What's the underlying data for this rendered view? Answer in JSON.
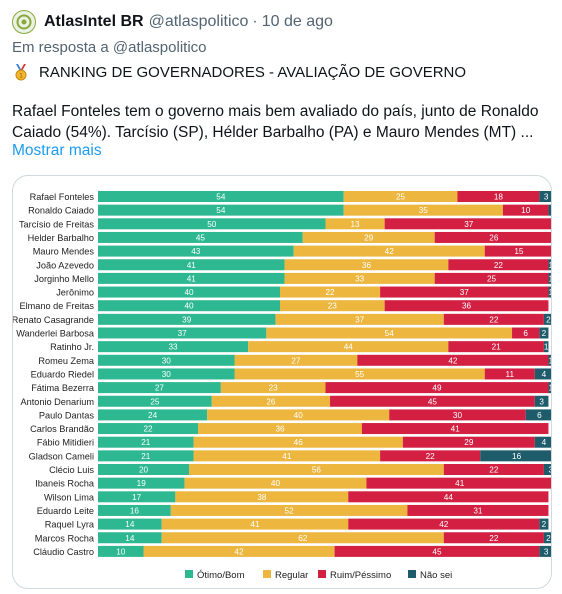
{
  "tweet": {
    "author_name": "AtlasIntel BR",
    "handle": "@atlaspolitico",
    "separator": "·",
    "time": "10 de ago",
    "reply_prefix": "Em resposta a",
    "reply_handle": "@atlaspolitico",
    "headline": "RANKING DE GOVERNADORES - AVALIAÇÃO DE GOVERNO",
    "body": "Rafael Fonteles tem o governo mais bem avaliado do país, junto de Ronaldo Caiado (54%). Tarcísio (SP), Hélder Barbalho (PA) e Mauro Mendes (MT) ...",
    "show_more": "Mostrar mais",
    "avatar_icon": "atlasintel-logo-icon",
    "medal_icon": "gold-medal-icon"
  },
  "colors": {
    "good": "#2db891",
    "regular": "#ecb63f",
    "bad": "#d21f42",
    "unknown": "#1f5c6b",
    "link": "#1d9bf0"
  },
  "chart_data": {
    "type": "bar",
    "orientation": "horizontal",
    "stacked": true,
    "categories": [
      "Rafael Fonteles",
      "Ronaldo Caiado",
      "Tarcísio de Freitas",
      "Helder Barbalho",
      "Mauro Mendes",
      "João Azevedo",
      "Jorginho Mello",
      "Jerônimo",
      "Elmano de Freitas",
      "Renato Casagrande",
      "Wanderlei Barbosa",
      "Ratinho Jr.",
      "Romeu Zema",
      "Eduardo Riedel",
      "Fátima Bezerra",
      "Antonio Denarium",
      "Paulo Dantas",
      "Carlos Brandão",
      "Fábio Mitidieri",
      "Gladson Cameli",
      "Clécio Luis",
      "Ibaneis Rocha",
      "Wilson Lima",
      "Eduardo Leite",
      "Raquel Lyra",
      "Marcos Rocha",
      "Cláudio Castro"
    ],
    "series": [
      {
        "name": "Ótimo/Bom",
        "values": [
          54,
          54,
          50,
          45,
          43,
          41,
          41,
          40,
          40,
          39,
          37,
          33,
          30,
          30,
          27,
          25,
          24,
          22,
          21,
          21,
          20,
          19,
          17,
          16,
          14,
          14,
          10
        ]
      },
      {
        "name": "Regular",
        "values": [
          25,
          35,
          13,
          29,
          42,
          36,
          33,
          22,
          23,
          37,
          54,
          44,
          27,
          55,
          23,
          26,
          40,
          36,
          46,
          41,
          56,
          40,
          38,
          52,
          41,
          62,
          42
        ]
      },
      {
        "name": "Ruim/Péssimo",
        "values": [
          18,
          10,
          37,
          26,
          15,
          22,
          25,
          37,
          36,
          22,
          6,
          21,
          42,
          11,
          49,
          45,
          30,
          41,
          29,
          22,
          22,
          41,
          44,
          31,
          42,
          22,
          45
        ]
      },
      {
        "name": "Não sei",
        "values": [
          3,
          2,
          0,
          0,
          0,
          1,
          1,
          1,
          0,
          2,
          2,
          1,
          1,
          4,
          1,
          3,
          6,
          0,
          4,
          16,
          3,
          0,
          0,
          0,
          2,
          2,
          3
        ]
      }
    ],
    "xlim": [
      0,
      100
    ],
    "legend_position": "bottom"
  }
}
